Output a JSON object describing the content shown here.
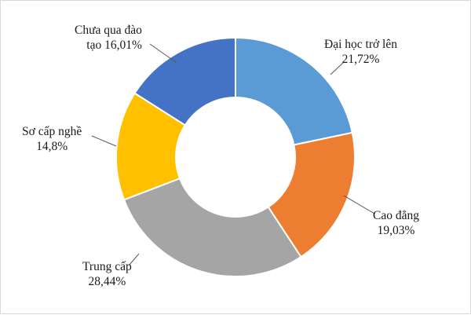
{
  "chart_data": {
    "type": "pie",
    "variant": "donut",
    "title": "",
    "slices": [
      {
        "name": "Đại học trở lên",
        "value": 21.72,
        "label": "Đại học trở lên",
        "value_label": "21,72%",
        "color": "#5b9bd5"
      },
      {
        "name": "Cao đẳng",
        "value": 19.03,
        "label": "Cao đẳng",
        "value_label": "19,03%",
        "color": "#ed7d31"
      },
      {
        "name": "Trung cấp",
        "value": 28.44,
        "label": "Trung cấp",
        "value_label": "28,44%",
        "color": "#a5a5a5"
      },
      {
        "name": "Sơ cấp nghề",
        "value": 14.8,
        "label": "Sơ cấp nghề",
        "value_label": "14,8%",
        "color": "#ffc000"
      },
      {
        "name": "Chưa qua đào tạo",
        "value": 16.01,
        "label": "Chưa qua đào",
        "label_line2": "tạo 16,01%",
        "color": "#4472c4"
      }
    ]
  }
}
